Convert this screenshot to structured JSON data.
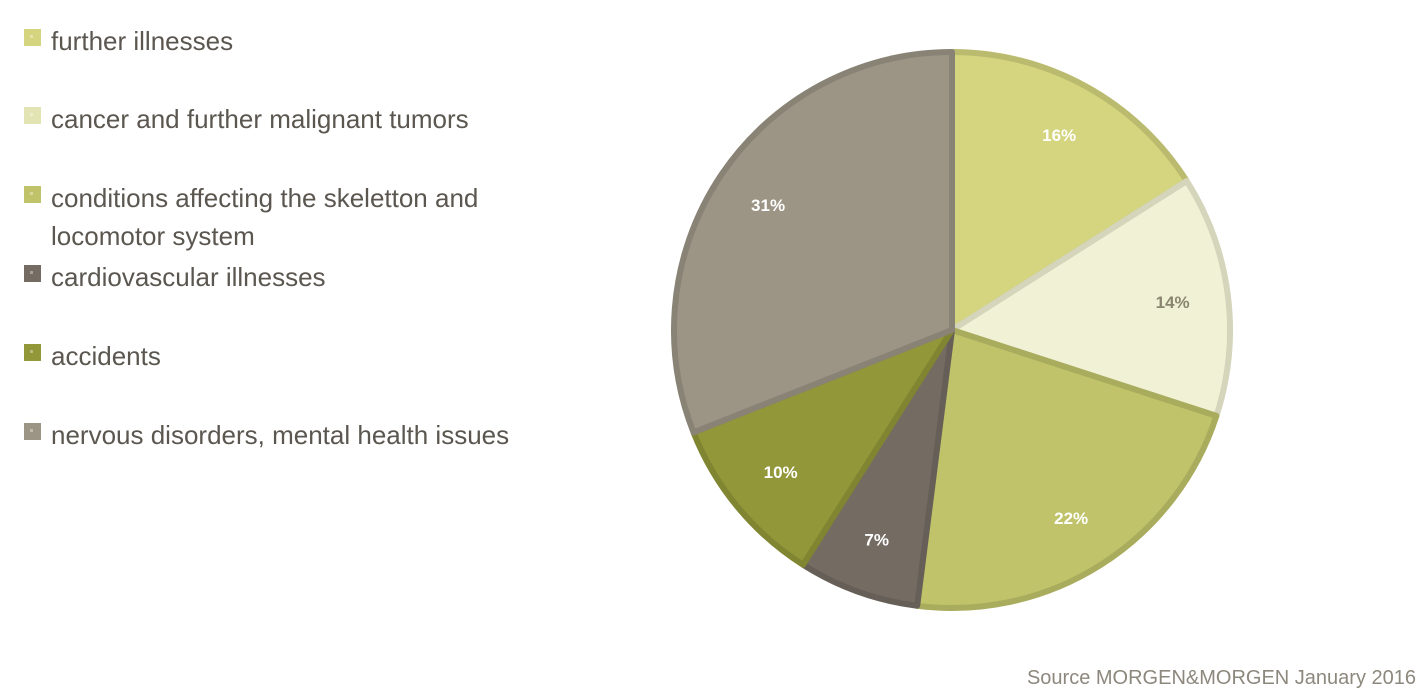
{
  "chart_data": {
    "type": "pie",
    "slices": [
      {
        "label": "further illnesses",
        "value": 16,
        "display": "16%",
        "color": "#d4d57e",
        "label_color": "#ffffff"
      },
      {
        "label": "cancer and further malignant tumors",
        "value": 14,
        "display": "14%",
        "color": "#f1f2d5",
        "label_color": "#8a856f"
      },
      {
        "label": "conditions affecting the skeletton and locomotor system",
        "value": 22,
        "display": "22%",
        "color": "#c0c36a",
        "label_color": "#ffffff"
      },
      {
        "label": "cardiovascular illnesses",
        "value": 7,
        "display": "7%",
        "color": "#746c63",
        "label_color": "#ffffff"
      },
      {
        "label": "accidents",
        "value": 10,
        "display": "10%",
        "color": "#929739",
        "label_color": "#ffffff"
      },
      {
        "label": "nervous disorders, mental health issues",
        "value": 31,
        "display": "31%",
        "color": "#9c9586",
        "label_color": "#ffffff"
      }
    ],
    "start_angle_deg": 0,
    "direction": "clockwise",
    "legend_position": "left",
    "source": "Source MORGEN&MORGEN January 2016"
  }
}
